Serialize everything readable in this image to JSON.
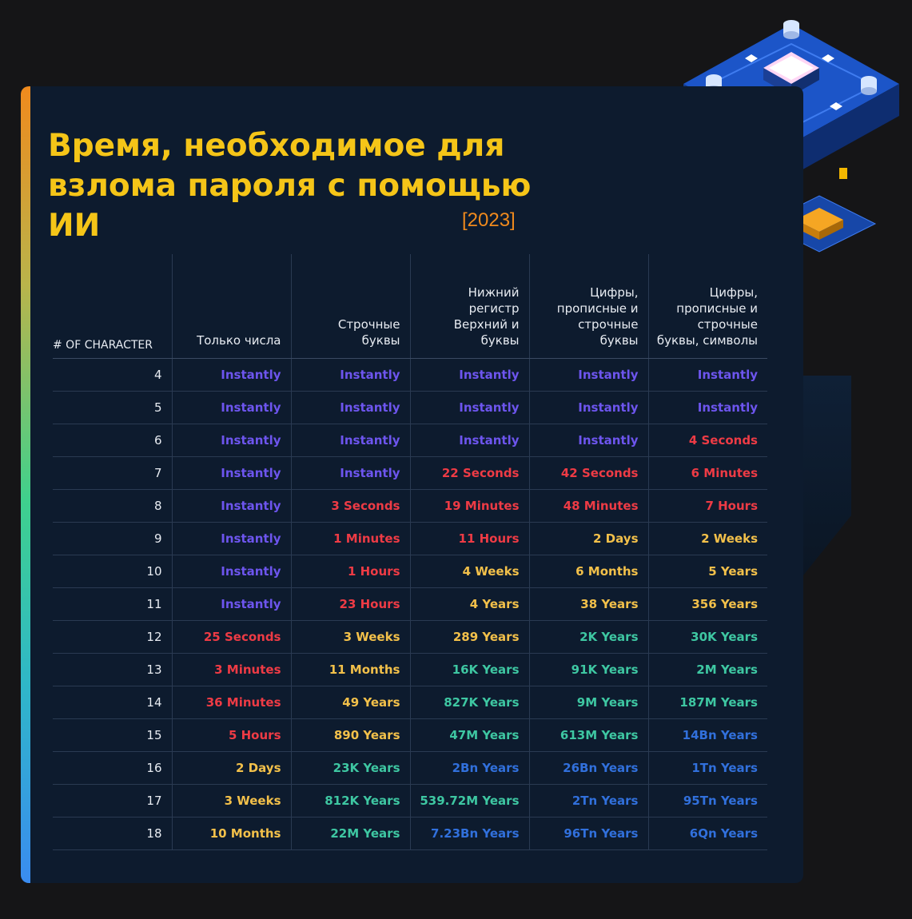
{
  "title": "Время, необходимое для взлома пароля с помощью ИИ",
  "year": "[2023]",
  "headers": [
    "# OF CHARACTER",
    "Только числа",
    "Строчные буквы",
    "Нижний регистр Верхний и буквы",
    "Цифры, прописные и строчные буквы",
    "Цифры, прописные и строчные буквы, символы"
  ],
  "colors": {
    "purple": "#6d55ee",
    "red": "#ee3b45",
    "yellow": "#f2c04a",
    "green": "#3ec7a2",
    "blue": "#3170dc",
    "title": "#f5c518",
    "year": "#f08a1d"
  },
  "rows": [
    {
      "n": "4",
      "cells": [
        {
          "v": "Instantly",
          "c": "purple"
        },
        {
          "v": "Instantly",
          "c": "purple"
        },
        {
          "v": "Instantly",
          "c": "purple"
        },
        {
          "v": "Instantly",
          "c": "purple"
        },
        {
          "v": "Instantly",
          "c": "purple"
        }
      ]
    },
    {
      "n": "5",
      "cells": [
        {
          "v": "Instantly",
          "c": "purple"
        },
        {
          "v": "Instantly",
          "c": "purple"
        },
        {
          "v": "Instantly",
          "c": "purple"
        },
        {
          "v": "Instantly",
          "c": "purple"
        },
        {
          "v": "Instantly",
          "c": "purple"
        }
      ]
    },
    {
      "n": "6",
      "cells": [
        {
          "v": "Instantly",
          "c": "purple"
        },
        {
          "v": "Instantly",
          "c": "purple"
        },
        {
          "v": "Instantly",
          "c": "purple"
        },
        {
          "v": "Instantly",
          "c": "purple"
        },
        {
          "v": "4 Seconds",
          "c": "red"
        }
      ]
    },
    {
      "n": "7",
      "cells": [
        {
          "v": "Instantly",
          "c": "purple"
        },
        {
          "v": "Instantly",
          "c": "purple"
        },
        {
          "v": "22 Seconds",
          "c": "red"
        },
        {
          "v": "42 Seconds",
          "c": "red"
        },
        {
          "v": "6 Minutes",
          "c": "red"
        }
      ]
    },
    {
      "n": "8",
      "cells": [
        {
          "v": "Instantly",
          "c": "purple"
        },
        {
          "v": "3 Seconds",
          "c": "red"
        },
        {
          "v": "19 Minutes",
          "c": "red"
        },
        {
          "v": "48 Minutes",
          "c": "red"
        },
        {
          "v": "7 Hours",
          "c": "red"
        }
      ]
    },
    {
      "n": "9",
      "cells": [
        {
          "v": "Instantly",
          "c": "purple"
        },
        {
          "v": "1 Minutes",
          "c": "red"
        },
        {
          "v": "11 Hours",
          "c": "red"
        },
        {
          "v": "2 Days",
          "c": "yellow"
        },
        {
          "v": "2 Weeks",
          "c": "yellow"
        }
      ]
    },
    {
      "n": "10",
      "cells": [
        {
          "v": "Instantly",
          "c": "purple"
        },
        {
          "v": "1 Hours",
          "c": "red"
        },
        {
          "v": "4 Weeks",
          "c": "yellow"
        },
        {
          "v": "6 Months",
          "c": "yellow"
        },
        {
          "v": "5 Years",
          "c": "yellow"
        }
      ]
    },
    {
      "n": "11",
      "cells": [
        {
          "v": "Instantly",
          "c": "purple"
        },
        {
          "v": "23 Hours",
          "c": "red"
        },
        {
          "v": "4 Years",
          "c": "yellow"
        },
        {
          "v": "38 Years",
          "c": "yellow"
        },
        {
          "v": "356 Years",
          "c": "yellow"
        }
      ]
    },
    {
      "n": "12",
      "cells": [
        {
          "v": "25 Seconds",
          "c": "red"
        },
        {
          "v": "3 Weeks",
          "c": "yellow"
        },
        {
          "v": "289 Years",
          "c": "yellow"
        },
        {
          "v": "2K Years",
          "c": "green"
        },
        {
          "v": "30K Years",
          "c": "green"
        }
      ]
    },
    {
      "n": "13",
      "cells": [
        {
          "v": "3 Minutes",
          "c": "red"
        },
        {
          "v": "11 Months",
          "c": "yellow"
        },
        {
          "v": "16K Years",
          "c": "green"
        },
        {
          "v": "91K Years",
          "c": "green"
        },
        {
          "v": "2M Years",
          "c": "green"
        }
      ]
    },
    {
      "n": "14",
      "cells": [
        {
          "v": "36 Minutes",
          "c": "red"
        },
        {
          "v": "49 Years",
          "c": "yellow"
        },
        {
          "v": "827K Years",
          "c": "green"
        },
        {
          "v": "9M Years",
          "c": "green"
        },
        {
          "v": "187M Years",
          "c": "green"
        }
      ]
    },
    {
      "n": "15",
      "cells": [
        {
          "v": "5 Hours",
          "c": "red"
        },
        {
          "v": "890 Years",
          "c": "yellow"
        },
        {
          "v": "47M Years",
          "c": "green"
        },
        {
          "v": "613M Years",
          "c": "green"
        },
        {
          "v": "14Bn Years",
          "c": "blue"
        }
      ]
    },
    {
      "n": "16",
      "cells": [
        {
          "v": "2 Days",
          "c": "yellow"
        },
        {
          "v": "23K Years",
          "c": "green"
        },
        {
          "v": "2Bn Years",
          "c": "blue"
        },
        {
          "v": "26Bn Years",
          "c": "blue"
        },
        {
          "v": "1Tn Years",
          "c": "blue"
        }
      ]
    },
    {
      "n": "17",
      "cells": [
        {
          "v": "3 Weeks",
          "c": "yellow"
        },
        {
          "v": "812K Years",
          "c": "green"
        },
        {
          "v": "539.72M Years",
          "c": "green"
        },
        {
          "v": "2Tn Years",
          "c": "blue"
        },
        {
          "v": "95Tn Years",
          "c": "blue"
        }
      ]
    },
    {
      "n": "18",
      "cells": [
        {
          "v": "10 Months",
          "c": "yellow"
        },
        {
          "v": "22M Years",
          "c": "green"
        },
        {
          "v": "7.23Bn Years",
          "c": "blue"
        },
        {
          "v": "96Tn Years",
          "c": "blue"
        },
        {
          "v": "6Qn Years",
          "c": "blue"
        }
      ]
    }
  ]
}
